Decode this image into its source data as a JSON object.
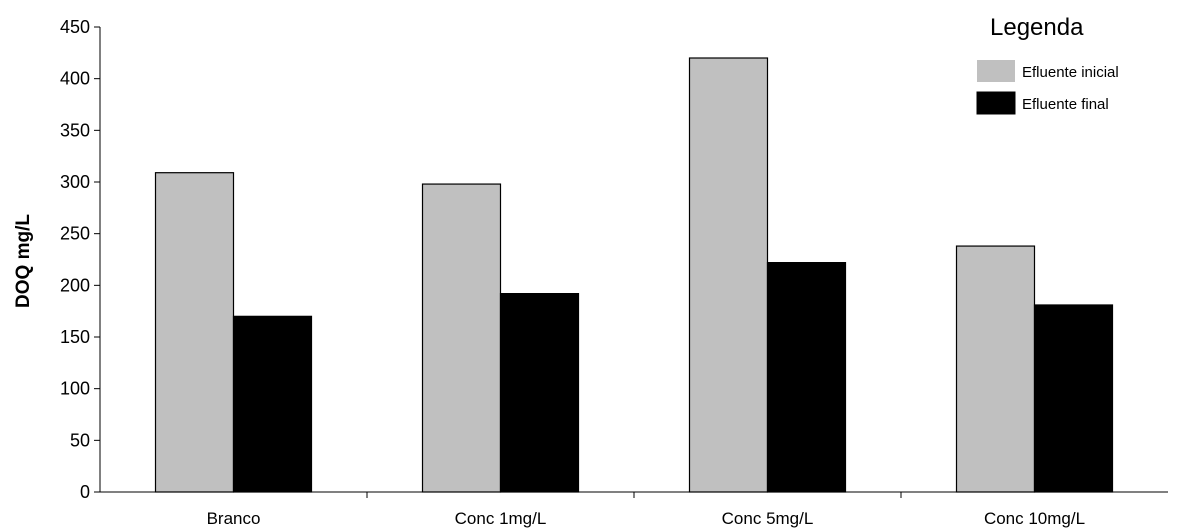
{
  "chart_data": {
    "type": "bar",
    "categories": [
      "Branco",
      "Conc 1mg/L",
      "Conc 5mg/L",
      "Conc 10mg/L"
    ],
    "series": [
      {
        "name": "Efluente inicial",
        "values": [
          309,
          298,
          420,
          238
        ],
        "color": "#c0c0c0"
      },
      {
        "name": "Efluente final",
        "values": [
          170,
          192,
          222,
          181
        ],
        "color": "#000000"
      }
    ],
    "ylabel": "DOQ mg/L",
    "xlabel": "",
    "ylim": [
      0,
      450
    ],
    "yticks": [
      0,
      50,
      100,
      150,
      200,
      250,
      300,
      350,
      400,
      450
    ],
    "grid": false,
    "legend": {
      "title": "Legenda",
      "position": "top-right"
    }
  }
}
